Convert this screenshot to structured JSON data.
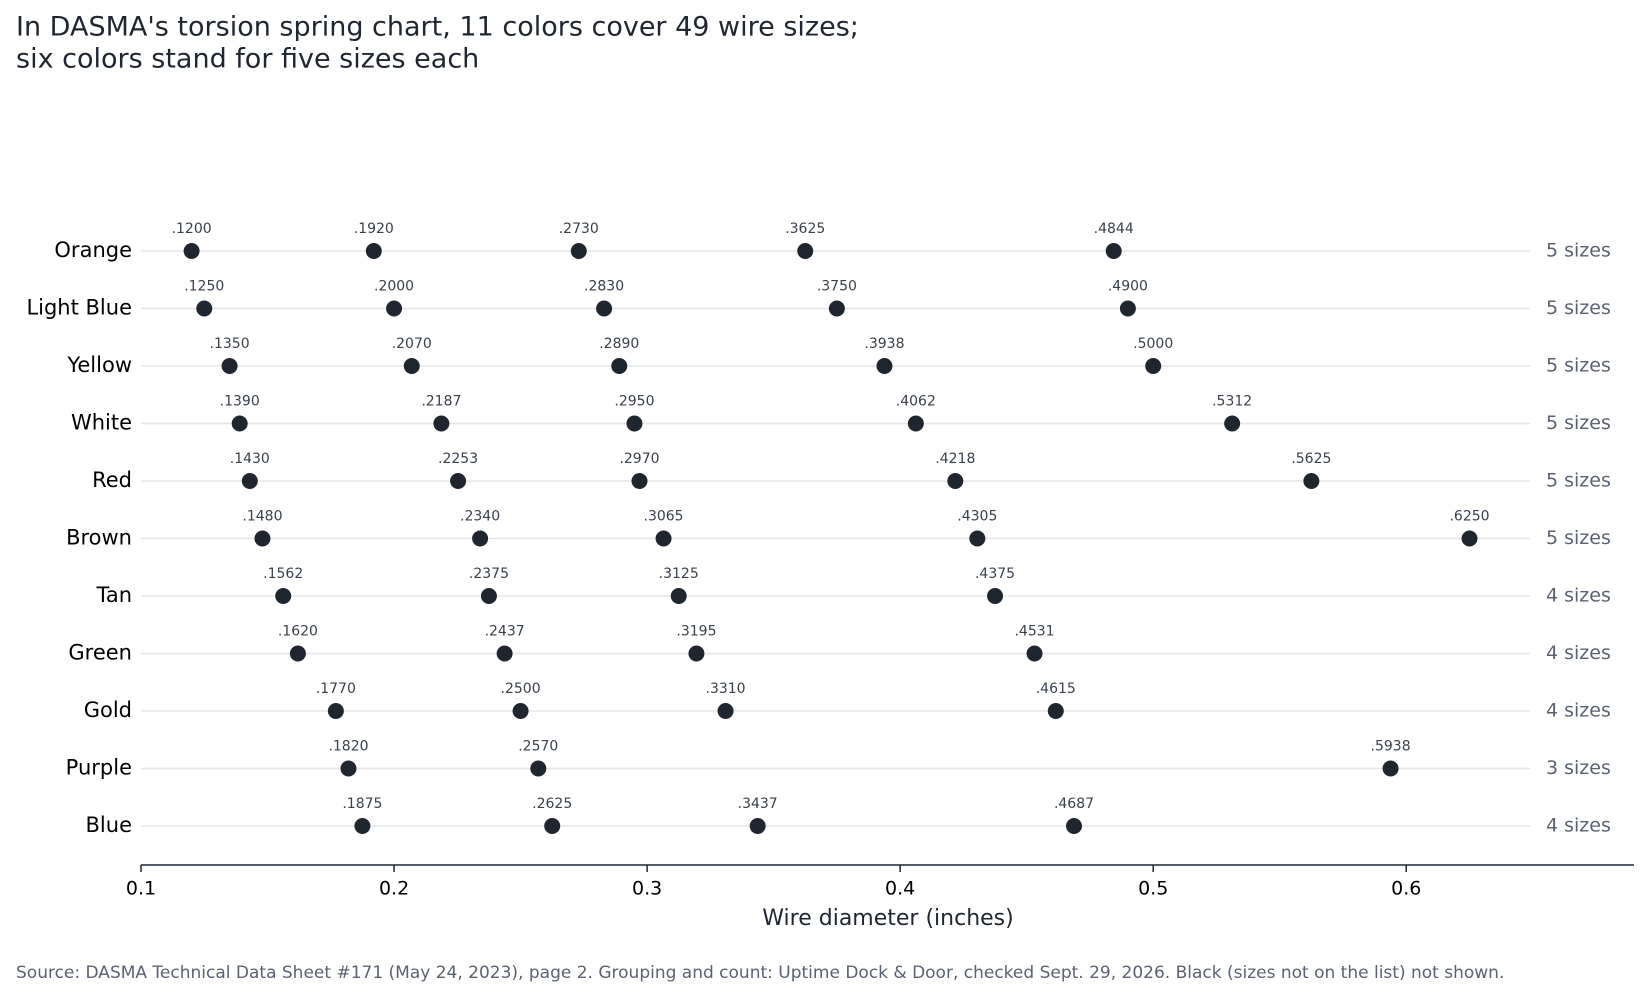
{
  "chart_data": {
    "type": "dot",
    "title": [
      "In DASMA's torsion spring chart, 11 colors cover 49 wire sizes;",
      "six colors stand for five sizes each"
    ],
    "xlabel": "Wire diameter (inches)",
    "source": "Source: DASMA Technical Data Sheet #171 (May 24, 2023), page 2. Grouping and count: Uptime Dock & Door, checked Sept. 29, 2026. Black (sizes not on the list) not shown.",
    "color": "#1f2630",
    "xlim": [
      0.1,
      0.69
    ],
    "xticks": [
      0.1,
      0.2,
      0.3,
      0.4,
      0.5,
      0.6
    ],
    "series": [
      {
        "name": "Orange",
        "count_label": "5 sizes",
        "values": [
          0.12,
          0.192,
          0.273,
          0.3625,
          0.4844
        ],
        "value_labels": [
          ".1200",
          ".1920",
          ".2730",
          ".3625",
          ".4844"
        ]
      },
      {
        "name": "Light Blue",
        "count_label": "5 sizes",
        "values": [
          0.125,
          0.2,
          0.283,
          0.375,
          0.49
        ],
        "value_labels": [
          ".1250",
          ".2000",
          ".2830",
          ".3750",
          ".4900"
        ]
      },
      {
        "name": "Yellow",
        "count_label": "5 sizes",
        "values": [
          0.135,
          0.207,
          0.289,
          0.3938,
          0.5
        ],
        "value_labels": [
          ".1350",
          ".2070",
          ".2890",
          ".3938",
          ".5000"
        ]
      },
      {
        "name": "White",
        "count_label": "5 sizes",
        "values": [
          0.139,
          0.2187,
          0.295,
          0.4062,
          0.5312
        ],
        "value_labels": [
          ".1390",
          ".2187",
          ".2950",
          ".4062",
          ".5312"
        ]
      },
      {
        "name": "Red",
        "count_label": "5 sizes",
        "values": [
          0.143,
          0.2253,
          0.297,
          0.4218,
          0.5625
        ],
        "value_labels": [
          ".1430",
          ".2253",
          ".2970",
          ".4218",
          ".5625"
        ]
      },
      {
        "name": "Brown",
        "count_label": "5 sizes",
        "values": [
          0.148,
          0.234,
          0.3065,
          0.4305,
          0.625
        ],
        "value_labels": [
          ".1480",
          ".2340",
          ".3065",
          ".4305",
          ".6250"
        ]
      },
      {
        "name": "Tan",
        "count_label": "4 sizes",
        "values": [
          0.1562,
          0.2375,
          0.3125,
          0.4375
        ],
        "value_labels": [
          ".1562",
          ".2375",
          ".3125",
          ".4375"
        ]
      },
      {
        "name": "Green",
        "count_label": "4 sizes",
        "values": [
          0.162,
          0.2437,
          0.3195,
          0.4531
        ],
        "value_labels": [
          ".1620",
          ".2437",
          ".3195",
          ".4531"
        ]
      },
      {
        "name": "Gold",
        "count_label": "4 sizes",
        "values": [
          0.177,
          0.25,
          0.331,
          0.4615
        ],
        "value_labels": [
          ".1770",
          ".2500",
          ".3310",
          ".4615"
        ]
      },
      {
        "name": "Purple",
        "count_label": "3 sizes",
        "values": [
          0.182,
          0.257,
          0.5938
        ],
        "value_labels": [
          ".1820",
          ".2570",
          ".5938"
        ]
      },
      {
        "name": "Blue",
        "count_label": "4 sizes",
        "values": [
          0.1875,
          0.2625,
          0.3437,
          0.4687
        ],
        "value_labels": [
          ".1875",
          ".2625",
          ".3437",
          ".4687"
        ]
      }
    ]
  }
}
